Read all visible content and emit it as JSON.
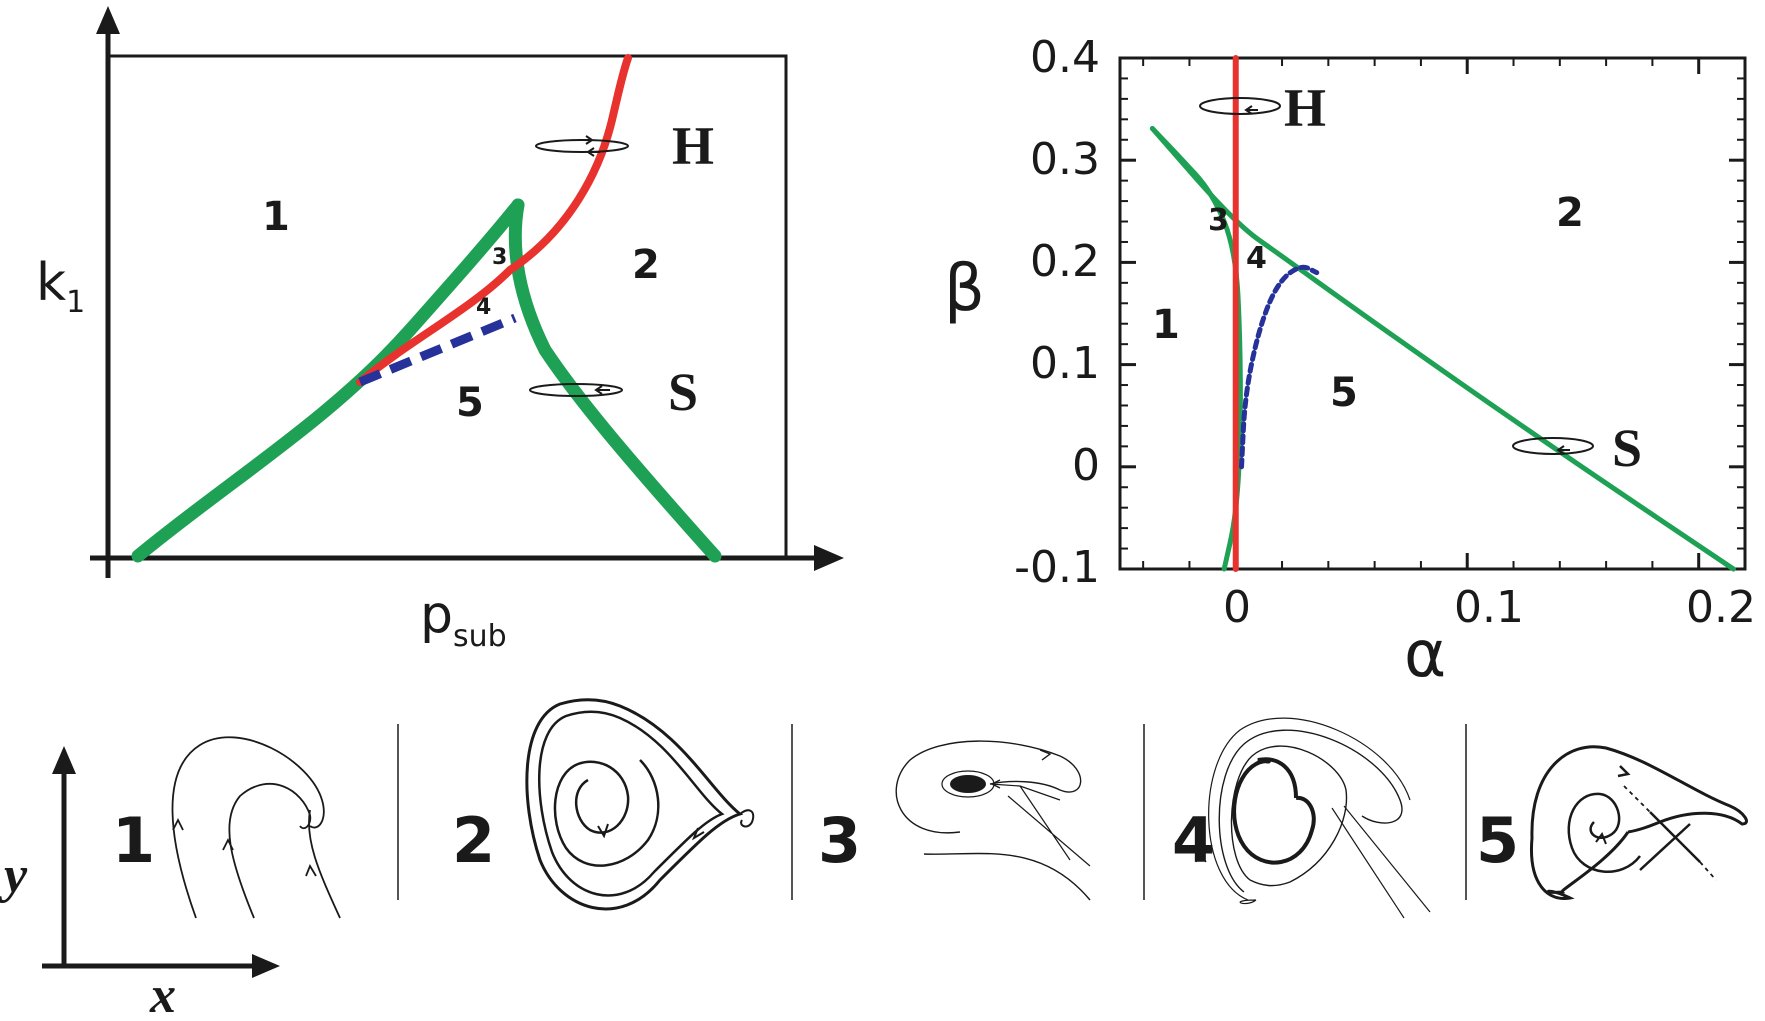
{
  "colors": {
    "green": "#1fa155",
    "red": "#e8322d",
    "blue": "#26329a",
    "black": "#1a1a1a"
  },
  "left_panel": {
    "xlabel_main": "p",
    "xlabel_sub": "sub",
    "ylabel_main": "k",
    "ylabel_sub": "1",
    "regions": [
      "1",
      "2",
      "3",
      "4",
      "5"
    ],
    "marker_h": "H",
    "marker_s": "S"
  },
  "right_panel": {
    "xlabel": "α",
    "ylabel": "β",
    "regions": [
      "1",
      "2",
      "3",
      "4",
      "5"
    ],
    "marker_h": "H",
    "marker_s": "S",
    "x_ticks": [
      "0",
      "0.1",
      "0.2"
    ],
    "y_ticks": [
      "0.4",
      "0.3",
      "0.2",
      "0.1",
      "0",
      "-0.1"
    ]
  },
  "chart_data": {
    "type": "line",
    "xlabel": "α",
    "ylabel": "β",
    "xlim": [
      -0.05,
      0.22
    ],
    "ylim": [
      -0.1,
      0.4
    ],
    "x_ticks": [
      0,
      0.1,
      0.2
    ],
    "y_ticks": [
      -0.1,
      0,
      0.1,
      0.2,
      0.3,
      0.4
    ],
    "series": [
      {
        "x": [
          0.215,
          0.15,
          0.1,
          0.05,
          0.02,
          0.0,
          -0.036
        ],
        "y": [
          -0.1,
          -0.001,
          0.077,
          0.157,
          0.206,
          0.238,
          0.331
        ]
      },
      {
        "x": [
          -0.036,
          -0.025,
          -0.01,
          0.0,
          0.002,
          0.002,
          0.0,
          -0.005
        ],
        "y": [
          0.331,
          0.305,
          0.268,
          0.212,
          0.12,
          0.02,
          -0.05,
          -0.1
        ]
      },
      {
        "x": [
          0.0,
          0.0
        ],
        "y": [
          -0.1,
          0.4
        ]
      },
      {
        "x": [
          0.0025,
          0.004,
          0.01,
          0.018,
          0.028,
          0.035
        ],
        "y": [
          0.0,
          0.07,
          0.135,
          0.18,
          0.198,
          0.19
        ]
      }
    ]
  },
  "axes_xy": {
    "x": "x",
    "y": "y"
  },
  "phase_portraits": [
    "1",
    "2",
    "3",
    "4",
    "5"
  ]
}
